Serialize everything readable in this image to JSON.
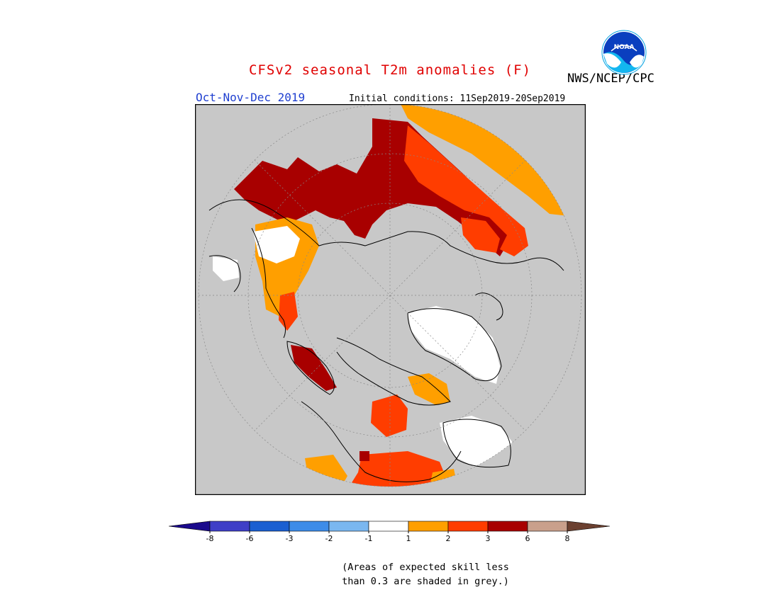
{
  "header": {
    "title": "CFSv2 seasonal T2m anomalies (F)",
    "agency": "NWS/NCEP/CPC",
    "season": "Oct-Nov-Dec 2019",
    "initial_conditions": "Initial conditions: 11Sep2019-20Sep2019",
    "logo_text": "NOAA"
  },
  "map": {
    "projection": "north polar stereographic",
    "background_color": "#c8c8c8",
    "land_outline_color": "#000000"
  },
  "colorbar": {
    "tick_labels": [
      "-8",
      "-6",
      "-3",
      "-2",
      "-1",
      "1",
      "2",
      "3",
      "6",
      "8"
    ],
    "colors": [
      "#1a0a8c",
      "#3f3fc7",
      "#1a5fd1",
      "#3d8ce8",
      "#7ab7f0",
      "#ffffff",
      "#ff9f00",
      "#ff3d00",
      "#a80000",
      "#c9a08c",
      "#6b4030"
    ]
  },
  "note": {
    "line1": "(Areas of expected skill less",
    "line2": "than 0.3 are shaded in grey.)"
  }
}
